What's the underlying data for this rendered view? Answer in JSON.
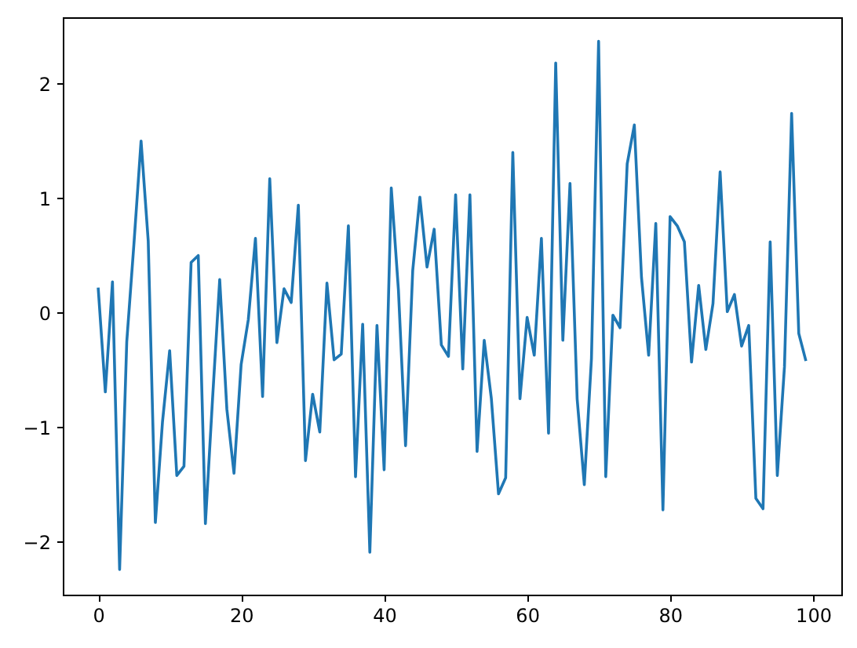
{
  "chart_data": {
    "type": "line",
    "x": [
      0,
      1,
      2,
      3,
      4,
      5,
      6,
      7,
      8,
      9,
      10,
      11,
      12,
      13,
      14,
      15,
      16,
      17,
      18,
      19,
      20,
      21,
      22,
      23,
      24,
      25,
      26,
      27,
      28,
      29,
      30,
      31,
      32,
      33,
      34,
      35,
      36,
      37,
      38,
      39,
      40,
      41,
      42,
      43,
      44,
      45,
      46,
      47,
      48,
      49,
      50,
      51,
      52,
      53,
      54,
      55,
      56,
      57,
      58,
      59,
      60,
      61,
      62,
      63,
      64,
      65,
      66,
      67,
      68,
      69,
      70,
      71,
      72,
      73,
      74,
      75,
      76,
      77,
      78,
      79,
      80,
      81,
      82,
      83,
      84,
      85,
      86,
      87,
      88,
      89,
      90,
      91,
      92,
      93,
      94,
      95,
      96,
      97,
      98,
      99
    ],
    "series": [
      {
        "color": "#1f77b4",
        "values": [
          0.22,
          -0.69,
          0.27,
          -2.24,
          -0.25,
          0.6,
          1.5,
          0.63,
          -1.83,
          -0.95,
          -0.33,
          -1.42,
          -1.34,
          0.44,
          0.5,
          -1.84,
          -0.75,
          0.29,
          -0.84,
          -1.4,
          -0.45,
          -0.06,
          0.65,
          -0.73,
          1.17,
          -0.26,
          0.21,
          0.09,
          0.94,
          -1.29,
          -0.71,
          -1.04,
          0.26,
          -0.41,
          -0.36,
          0.76,
          -1.43,
          -0.1,
          -2.09,
          -0.11,
          -1.37,
          1.09,
          0.2,
          -1.16,
          0.37,
          1.01,
          0.4,
          0.73,
          -0.28,
          -0.38,
          1.03,
          -0.49,
          1.03,
          -1.21,
          -0.24,
          -0.75,
          -1.58,
          -1.44,
          1.4,
          -0.75,
          -0.04,
          -0.37,
          0.65,
          -1.05,
          2.18,
          -0.24,
          1.13,
          -0.75,
          -1.5,
          -0.4,
          2.37,
          -1.43,
          -0.02,
          -0.13,
          1.3,
          1.64,
          0.31,
          -0.37,
          0.78,
          -1.72,
          0.84,
          0.76,
          0.62,
          -0.43,
          0.24,
          -0.32,
          0.08,
          1.23,
          0.01,
          0.16,
          -0.29,
          -0.11,
          -1.62,
          -1.71,
          0.62,
          -1.42,
          -0.47,
          1.74,
          -0.18,
          -0.42
        ]
      }
    ],
    "xlim": [
      -4.95,
      103.95
    ],
    "xticks": [
      0,
      20,
      40,
      60,
      80,
      100
    ],
    "ylim": [
      -2.46,
      2.58
    ],
    "yticks": [
      -2,
      -1,
      0,
      1,
      2
    ],
    "grid": false,
    "line_style": "solid"
  }
}
